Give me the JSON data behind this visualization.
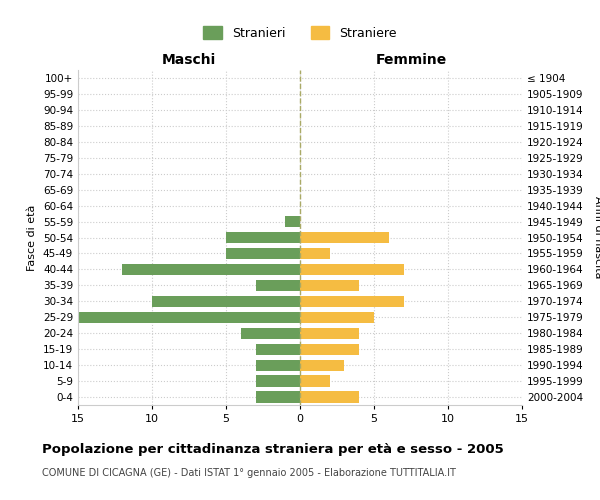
{
  "age_groups": [
    "0-4",
    "5-9",
    "10-14",
    "15-19",
    "20-24",
    "25-29",
    "30-34",
    "35-39",
    "40-44",
    "45-49",
    "50-54",
    "55-59",
    "60-64",
    "65-69",
    "70-74",
    "75-79",
    "80-84",
    "85-89",
    "90-94",
    "95-99",
    "100+"
  ],
  "birth_years": [
    "2000-2004",
    "1995-1999",
    "1990-1994",
    "1985-1989",
    "1980-1984",
    "1975-1979",
    "1970-1974",
    "1965-1969",
    "1960-1964",
    "1955-1959",
    "1950-1954",
    "1945-1949",
    "1940-1944",
    "1935-1939",
    "1930-1934",
    "1925-1929",
    "1920-1924",
    "1915-1919",
    "1910-1914",
    "1905-1909",
    "≤ 1904"
  ],
  "maschi": [
    3,
    3,
    3,
    3,
    4,
    15,
    10,
    3,
    12,
    5,
    5,
    1,
    0,
    0,
    0,
    0,
    0,
    0,
    0,
    0,
    0
  ],
  "femmine": [
    4,
    2,
    3,
    4,
    4,
    5,
    7,
    4,
    7,
    2,
    6,
    0,
    0,
    0,
    0,
    0,
    0,
    0,
    0,
    0,
    0
  ],
  "color_maschi": "#6a9e5a",
  "color_femmine": "#f5bc42",
  "title": "Popolazione per cittadinanza straniera per età e sesso - 2005",
  "subtitle": "COMUNE DI CICAGNA (GE) - Dati ISTAT 1° gennaio 2005 - Elaborazione TUTTITALIA.IT",
  "ylabel_left": "Fasce di età",
  "ylabel_right": "Anni di nascita",
  "xlabel_left": "Maschi",
  "xlabel_right": "Femmine",
  "legend_stranieri": "Stranieri",
  "legend_straniere": "Straniere",
  "xlim": 15,
  "background_color": "#ffffff",
  "grid_color": "#cccccc"
}
